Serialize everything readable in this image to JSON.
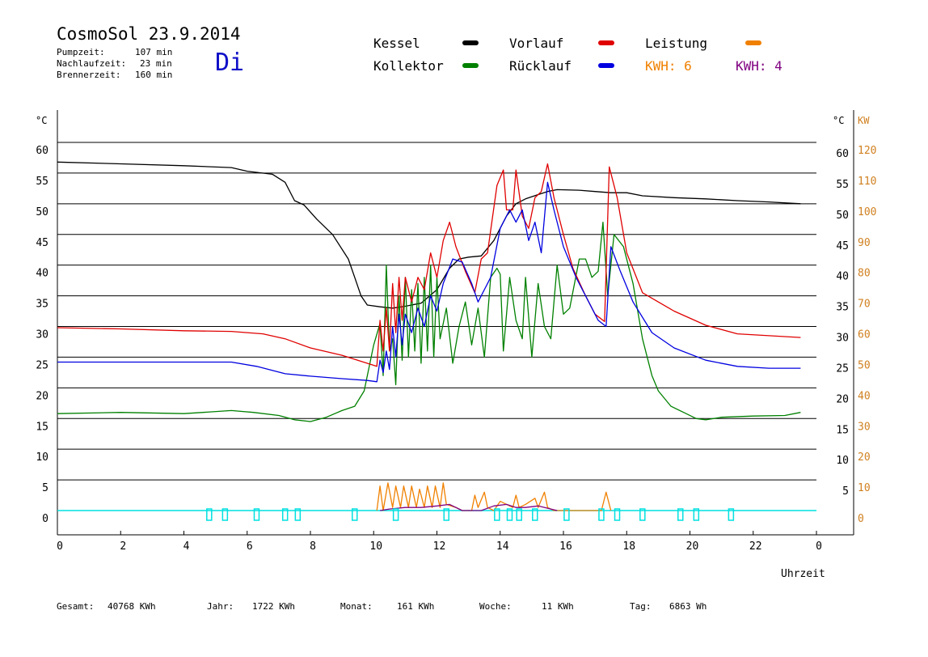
{
  "header": {
    "title": "CosmoSol 23.9.2014",
    "pumpzeit_label": "Pumpzeit:",
    "pumpzeit_value": "107 min",
    "nachlauf_label": "Nachlaufzeit:",
    "nachlauf_value": "23 min",
    "brenner_label": "Brennerzeit:",
    "brenner_value": "160 min",
    "day": "Di"
  },
  "legend": {
    "kessel": "Kessel",
    "kollektor": "Kollektor",
    "vorlauf": "Vorlauf",
    "ruecklauf": "Rücklauf",
    "leistung": "Leistung",
    "kwh1": "KWH: 6",
    "kwh2": "KWH: 4",
    "colors": {
      "kessel": "#000000",
      "kollektor": "#008000",
      "vorlauf": "#e00000",
      "ruecklauf": "#0000e0",
      "leistung": "#f08000",
      "kwh2": "#800080",
      "marker": "#00e0e0"
    }
  },
  "axes": {
    "left_unit": "°C",
    "right_unit": "°C",
    "right_unit2": "KW",
    "x_label": "Uhrzeit"
  },
  "footer": {
    "gesamt_label": "Gesamt:",
    "gesamt_value": "40768 KWh",
    "jahr_label": "Jahr:",
    "jahr_value": "1722 KWh",
    "monat_label": "Monat:",
    "monat_value": "161 KWh",
    "woche_label": "Woche:",
    "woche_value": "11 KWh",
    "tag_label": "Tag:",
    "tag_value": "6863 Wh"
  },
  "chart_data": {
    "type": "line",
    "xlabel": "Uhrzeit",
    "ylabel": "°C",
    "ylabel_right": "KW",
    "xlim": [
      0,
      24
    ],
    "ylim": [
      0,
      60
    ],
    "ylim_right": [
      0,
      120
    ],
    "x_ticks": [
      "0",
      "2",
      "4",
      "6",
      "8",
      "10",
      "12",
      "14",
      "16",
      "18",
      "20",
      "22",
      "0"
    ],
    "y_ticks": [
      "0",
      "5",
      "10",
      "15",
      "20",
      "25",
      "30",
      "35",
      "40",
      "45",
      "50",
      "55",
      "60"
    ],
    "y_ticks_right_celsius": [
      "5",
      "10",
      "15",
      "20",
      "25",
      "30",
      "35",
      "40",
      "45",
      "50",
      "55",
      "60"
    ],
    "y_ticks_right_kw": [
      "0",
      "10",
      "20",
      "30",
      "40",
      "50",
      "60",
      "70",
      "80",
      "90",
      "100",
      "110",
      "120"
    ],
    "grid": true,
    "series": [
      {
        "name": "Kessel",
        "color": "#000000",
        "points": [
          [
            0,
            56.8
          ],
          [
            2,
            56.5
          ],
          [
            4,
            56.2
          ],
          [
            5.5,
            55.9
          ],
          [
            6,
            55.3
          ],
          [
            6.8,
            54.8
          ],
          [
            7.2,
            53.5
          ],
          [
            7.5,
            50.5
          ],
          [
            7.8,
            49.8
          ],
          [
            8.2,
            47.5
          ],
          [
            8.7,
            45
          ],
          [
            9.2,
            41
          ],
          [
            9.4,
            38
          ],
          [
            9.6,
            35
          ],
          [
            9.8,
            33.5
          ],
          [
            10.2,
            33.2
          ],
          [
            10.6,
            33
          ],
          [
            11,
            33.3
          ],
          [
            11.5,
            33.8
          ],
          [
            12,
            36
          ],
          [
            12.4,
            39.5
          ],
          [
            12.7,
            41
          ],
          [
            13,
            41.3
          ],
          [
            13.4,
            41.5
          ],
          [
            13.8,
            44
          ],
          [
            14.2,
            48
          ],
          [
            14.5,
            50
          ],
          [
            14.8,
            50.8
          ],
          [
            15.2,
            51.5
          ],
          [
            15.5,
            52
          ],
          [
            15.8,
            52.3
          ],
          [
            16.5,
            52.2
          ],
          [
            17,
            52
          ],
          [
            17.5,
            51.8
          ],
          [
            18,
            51.8
          ],
          [
            18.5,
            51.3
          ],
          [
            19.5,
            51
          ],
          [
            20.5,
            50.8
          ],
          [
            21.5,
            50.5
          ],
          [
            22.5,
            50.3
          ],
          [
            23.5,
            50
          ]
        ]
      },
      {
        "name": "Kollektor",
        "color": "#008000",
        "points": [
          [
            0,
            15.8
          ],
          [
            2,
            16
          ],
          [
            4,
            15.8
          ],
          [
            5.5,
            16.3
          ],
          [
            6.2,
            16
          ],
          [
            7,
            15.5
          ],
          [
            7.5,
            14.8
          ],
          [
            8,
            14.5
          ],
          [
            8.5,
            15.2
          ],
          [
            9,
            16.3
          ],
          [
            9.4,
            17
          ],
          [
            9.7,
            19.5
          ],
          [
            10,
            27
          ],
          [
            10.2,
            30.5
          ],
          [
            10.3,
            22
          ],
          [
            10.4,
            40
          ],
          [
            10.5,
            26
          ],
          [
            10.6,
            28
          ],
          [
            10.7,
            20.5
          ],
          [
            10.8,
            35
          ],
          [
            10.9,
            24.5
          ],
          [
            11.0,
            38
          ],
          [
            11.1,
            25
          ],
          [
            11.2,
            36
          ],
          [
            11.3,
            26
          ],
          [
            11.4,
            37
          ],
          [
            11.5,
            24
          ],
          [
            11.6,
            38
          ],
          [
            11.7,
            26
          ],
          [
            11.8,
            40
          ],
          [
            11.9,
            25
          ],
          [
            12.0,
            38
          ],
          [
            12.1,
            28
          ],
          [
            12.3,
            33
          ],
          [
            12.5,
            24
          ],
          [
            12.7,
            30
          ],
          [
            12.9,
            34
          ],
          [
            13.1,
            27
          ],
          [
            13.3,
            33
          ],
          [
            13.5,
            25
          ],
          [
            13.7,
            38
          ],
          [
            13.9,
            39.5
          ],
          [
            14.0,
            38.5
          ],
          [
            14.1,
            26
          ],
          [
            14.3,
            38
          ],
          [
            14.5,
            31
          ],
          [
            14.7,
            28
          ],
          [
            14.8,
            38
          ],
          [
            15.0,
            25
          ],
          [
            15.2,
            37
          ],
          [
            15.4,
            30
          ],
          [
            15.6,
            28
          ],
          [
            15.8,
            40
          ],
          [
            16,
            32
          ],
          [
            16.2,
            33
          ],
          [
            16.5,
            41
          ],
          [
            16.7,
            41
          ],
          [
            16.9,
            38
          ],
          [
            17.1,
            39
          ],
          [
            17.25,
            47
          ],
          [
            17.4,
            35
          ],
          [
            17.6,
            45
          ],
          [
            17.9,
            43
          ],
          [
            18.2,
            37
          ],
          [
            18.5,
            28
          ],
          [
            18.8,
            22
          ],
          [
            19,
            19.5
          ],
          [
            19.4,
            17
          ],
          [
            19.8,
            16
          ],
          [
            20.2,
            15
          ],
          [
            20.5,
            14.8
          ],
          [
            21,
            15.2
          ],
          [
            22,
            15.4
          ],
          [
            23,
            15.5
          ],
          [
            23.5,
            16
          ]
        ]
      },
      {
        "name": "Vorlauf",
        "color": "#e00000",
        "points": [
          [
            0,
            29.8
          ],
          [
            2,
            29.6
          ],
          [
            4,
            29.3
          ],
          [
            5.5,
            29.2
          ],
          [
            6.5,
            28.8
          ],
          [
            7.2,
            28
          ],
          [
            8,
            26.5
          ],
          [
            9,
            25.3
          ],
          [
            9.8,
            24
          ],
          [
            10.1,
            23.5
          ],
          [
            10.2,
            31
          ],
          [
            10.3,
            26
          ],
          [
            10.4,
            33
          ],
          [
            10.5,
            26
          ],
          [
            10.6,
            37
          ],
          [
            10.7,
            29
          ],
          [
            10.8,
            38
          ],
          [
            10.9,
            31
          ],
          [
            11.0,
            38
          ],
          [
            11.2,
            34
          ],
          [
            11.4,
            38
          ],
          [
            11.6,
            36
          ],
          [
            11.8,
            42
          ],
          [
            12.0,
            38
          ],
          [
            12.2,
            44
          ],
          [
            12.4,
            47
          ],
          [
            12.6,
            43
          ],
          [
            12.9,
            39
          ],
          [
            13.2,
            35.5
          ],
          [
            13.4,
            41
          ],
          [
            13.6,
            42
          ],
          [
            13.9,
            53
          ],
          [
            14.1,
            55.5
          ],
          [
            14.2,
            49
          ],
          [
            14.4,
            49
          ],
          [
            14.5,
            55.5
          ],
          [
            14.7,
            48
          ],
          [
            14.9,
            46
          ],
          [
            15.1,
            51
          ],
          [
            15.3,
            52
          ],
          [
            15.5,
            56.5
          ],
          [
            15.7,
            51
          ],
          [
            16,
            45
          ],
          [
            16.3,
            39.5
          ],
          [
            16.7,
            35
          ],
          [
            17.0,
            32
          ],
          [
            17.3,
            30.8
          ],
          [
            17.45,
            56
          ],
          [
            17.7,
            51
          ],
          [
            18,
            42
          ],
          [
            18.5,
            35.5
          ],
          [
            19.5,
            32.5
          ],
          [
            20.5,
            30.2
          ],
          [
            21.5,
            28.8
          ],
          [
            22.5,
            28.5
          ],
          [
            23.5,
            28.2
          ]
        ]
      },
      {
        "name": "Rücklauf",
        "color": "#0000e0",
        "points": [
          [
            0,
            24.2
          ],
          [
            2,
            24.2
          ],
          [
            4,
            24.2
          ],
          [
            5.5,
            24.2
          ],
          [
            6.3,
            23.5
          ],
          [
            7.2,
            22.3
          ],
          [
            8,
            21.9
          ],
          [
            9,
            21.5
          ],
          [
            9.8,
            21.2
          ],
          [
            10.1,
            21
          ],
          [
            10.2,
            24.5
          ],
          [
            10.3,
            22.5
          ],
          [
            10.4,
            26
          ],
          [
            10.5,
            23
          ],
          [
            10.6,
            30
          ],
          [
            10.7,
            25
          ],
          [
            10.8,
            32
          ],
          [
            10.9,
            27
          ],
          [
            11.0,
            32
          ],
          [
            11.2,
            29
          ],
          [
            11.4,
            33
          ],
          [
            11.6,
            30
          ],
          [
            11.8,
            35
          ],
          [
            12.0,
            32.5
          ],
          [
            12.2,
            37
          ],
          [
            12.5,
            41
          ],
          [
            12.8,
            40.5
          ],
          [
            13.1,
            37
          ],
          [
            13.3,
            34
          ],
          [
            13.5,
            36
          ],
          [
            13.7,
            38
          ],
          [
            14.0,
            46
          ],
          [
            14.3,
            49
          ],
          [
            14.5,
            47
          ],
          [
            14.7,
            49
          ],
          [
            14.9,
            44
          ],
          [
            15.1,
            47
          ],
          [
            15.3,
            42
          ],
          [
            15.5,
            53.5
          ],
          [
            15.7,
            49
          ],
          [
            16,
            43
          ],
          [
            16.4,
            38
          ],
          [
            16.8,
            34
          ],
          [
            17.1,
            31
          ],
          [
            17.35,
            30
          ],
          [
            17.5,
            43
          ],
          [
            17.8,
            39
          ],
          [
            18.2,
            34
          ],
          [
            18.8,
            29
          ],
          [
            19.5,
            26.5
          ],
          [
            20.5,
            24.5
          ],
          [
            21.5,
            23.5
          ],
          [
            22.5,
            23.2
          ],
          [
            23.5,
            23.2
          ]
        ]
      },
      {
        "name": "Leistung",
        "color": "#f08000",
        "unit": "KW",
        "points": [
          [
            10.1,
            0
          ],
          [
            10.2,
            8
          ],
          [
            10.3,
            0
          ],
          [
            10.45,
            9
          ],
          [
            10.6,
            1
          ],
          [
            10.7,
            8
          ],
          [
            10.85,
            1
          ],
          [
            10.95,
            8
          ],
          [
            11.1,
            1
          ],
          [
            11.2,
            8
          ],
          [
            11.35,
            1
          ],
          [
            11.45,
            7
          ],
          [
            11.6,
            1
          ],
          [
            11.7,
            8
          ],
          [
            11.85,
            1
          ],
          [
            11.95,
            8
          ],
          [
            12.1,
            1
          ],
          [
            12.2,
            9
          ],
          [
            12.3,
            2
          ],
          [
            12.6,
            1
          ],
          [
            12.8,
            0
          ],
          [
            13.1,
            0
          ],
          [
            13.2,
            5
          ],
          [
            13.3,
            1
          ],
          [
            13.5,
            6
          ],
          [
            13.6,
            1
          ],
          [
            13.8,
            0
          ],
          [
            14.0,
            3
          ],
          [
            14.4,
            1
          ],
          [
            14.5,
            5
          ],
          [
            14.6,
            1
          ],
          [
            14.8,
            2
          ],
          [
            15.1,
            4
          ],
          [
            15.2,
            1
          ],
          [
            15.4,
            6
          ],
          [
            15.5,
            1
          ],
          [
            15.7,
            0
          ],
          [
            17.2,
            0
          ],
          [
            17.35,
            6
          ],
          [
            17.5,
            0
          ]
        ]
      },
      {
        "name": "KWH: 4",
        "color": "#800080",
        "unit": "KW",
        "points": [
          [
            10.2,
            0
          ],
          [
            10.5,
            0.5
          ],
          [
            11.0,
            1
          ],
          [
            11.5,
            1
          ],
          [
            12.0,
            1.5
          ],
          [
            12.4,
            2
          ],
          [
            12.8,
            0
          ],
          [
            13.4,
            0
          ],
          [
            13.8,
            1.5
          ],
          [
            14.2,
            2
          ],
          [
            14.5,
            1
          ],
          [
            14.8,
            1
          ],
          [
            15.2,
            1.5
          ],
          [
            15.6,
            0.5
          ],
          [
            15.8,
            0
          ]
        ]
      }
    ],
    "markers_x": [
      4.8,
      5.3,
      6.3,
      7.2,
      7.6,
      9.4,
      10.7,
      12.3,
      13.9,
      14.3,
      14.6,
      15.1,
      16.1,
      17.2,
      17.7,
      18.5,
      19.7,
      20.2,
      21.3
    ]
  }
}
